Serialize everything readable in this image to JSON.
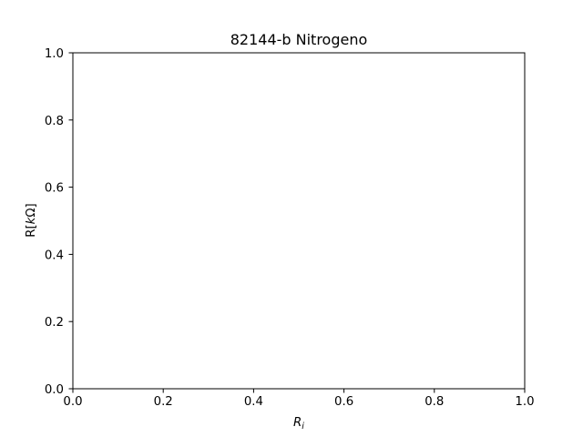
{
  "chart_data": {
    "type": "scatter",
    "title": "82144-b Nitrogeno",
    "xlabel": {
      "main": "R",
      "sub": "i"
    },
    "ylabel": {
      "pre": "R[",
      "italic": "k",
      "omega": "Ω",
      "post": "]"
    },
    "xlim": [
      0.0,
      1.0
    ],
    "ylim": [
      0.0,
      1.0
    ],
    "xticks": [
      0.0,
      0.2,
      0.4,
      0.6,
      0.8,
      1.0
    ],
    "yticks": [
      0.0,
      0.2,
      0.4,
      0.6,
      0.8,
      1.0
    ],
    "xtick_labels": [
      "0.0",
      "0.2",
      "0.4",
      "0.6",
      "0.8",
      "1.0"
    ],
    "ytick_labels": [
      "0.0",
      "0.2",
      "0.4",
      "0.6",
      "0.8",
      "1.0"
    ],
    "grid": false,
    "series": [],
    "colors": {
      "axis": "#000000",
      "background": "#ffffff"
    }
  }
}
